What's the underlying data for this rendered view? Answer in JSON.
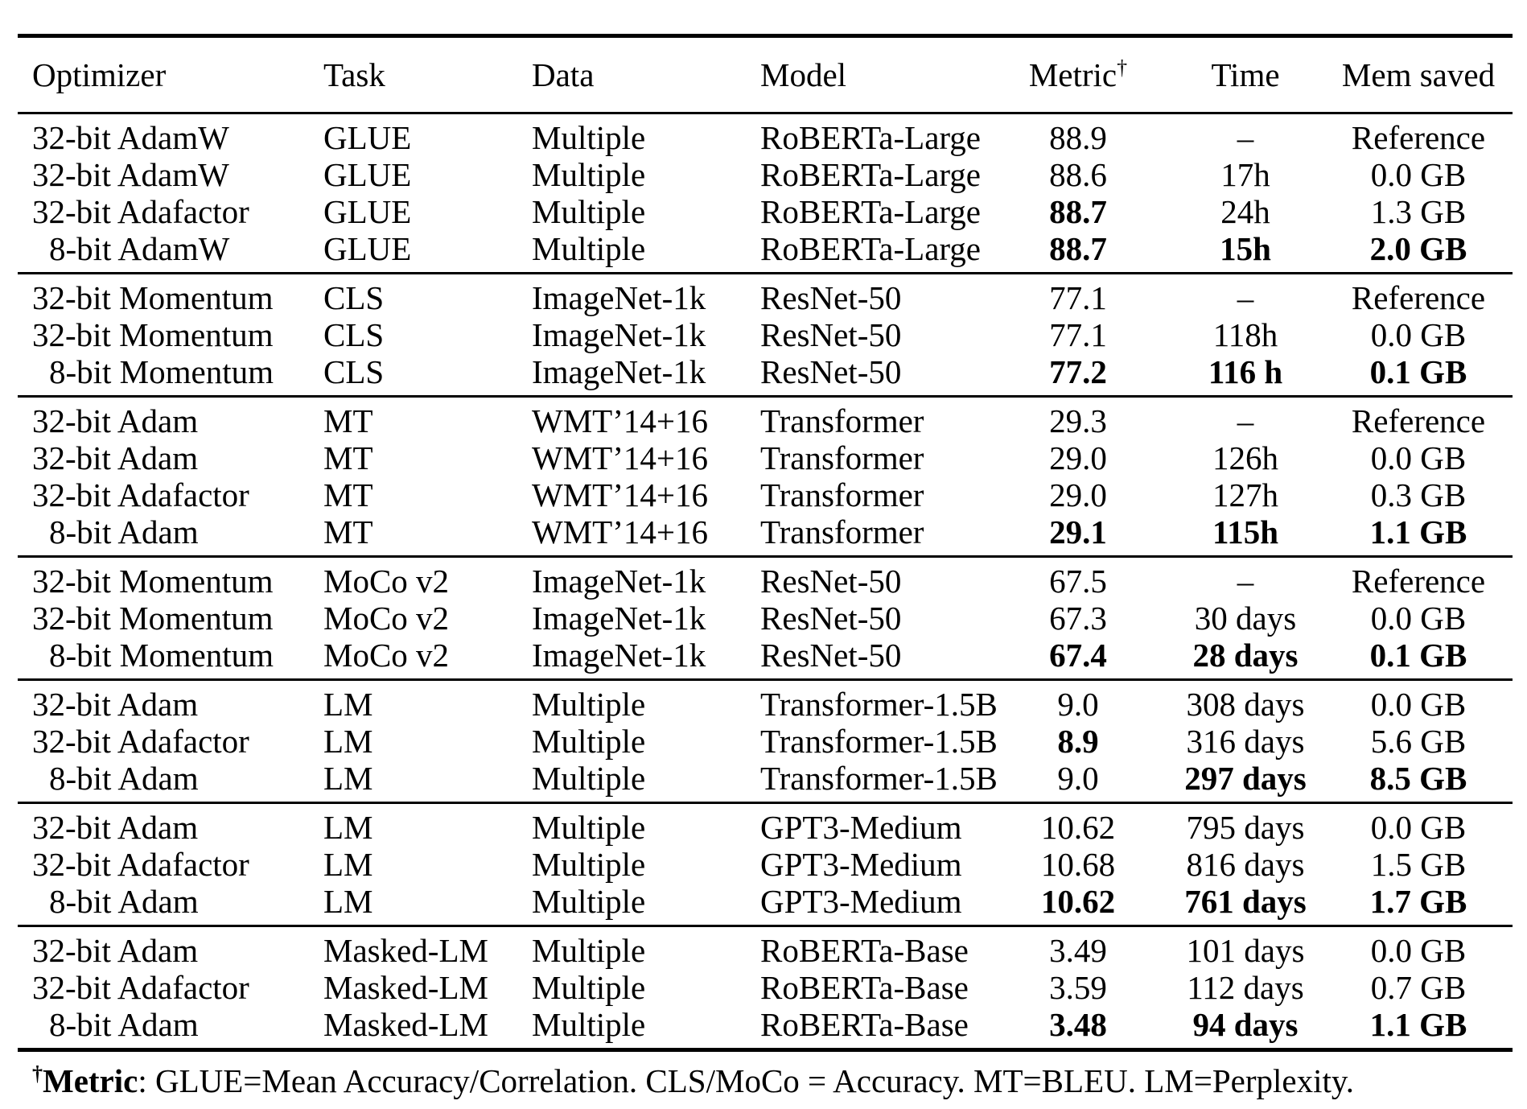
{
  "table": {
    "columns": [
      {
        "label": "Optimizer",
        "align": "left"
      },
      {
        "label": "Task",
        "align": "left"
      },
      {
        "label": "Data",
        "align": "left"
      },
      {
        "label": "Model",
        "align": "left"
      },
      {
        "label": "Metric",
        "sup": "†",
        "align": "center"
      },
      {
        "label": "Time",
        "align": "center"
      },
      {
        "label": "Mem saved",
        "align": "center"
      }
    ],
    "groups": [
      {
        "rows": [
          {
            "optimizer": "32-bit AdamW",
            "task": "GLUE",
            "data": "Multiple",
            "model": "RoBERTa-Large",
            "metric": "88.9",
            "time": "–",
            "mem": "Reference",
            "bold": []
          },
          {
            "optimizer": "32-bit AdamW",
            "task": "GLUE",
            "data": "Multiple",
            "model": "RoBERTa-Large",
            "metric": "88.6",
            "time": "17h",
            "mem": "0.0 GB",
            "bold": []
          },
          {
            "optimizer": "32-bit Adafactor",
            "task": "GLUE",
            "data": "Multiple",
            "model": "RoBERTa-Large",
            "metric": "88.7",
            "time": "24h",
            "mem": "1.3 GB",
            "bold": [
              "metric"
            ]
          },
          {
            "optimizer": "8-bit AdamW",
            "task": "GLUE",
            "data": "Multiple",
            "model": "RoBERTa-Large",
            "metric": "88.7",
            "time": "15h",
            "mem": "2.0 GB",
            "bold": [
              "metric",
              "time",
              "mem"
            ]
          }
        ]
      },
      {
        "rows": [
          {
            "optimizer": "32-bit Momentum",
            "task": "CLS",
            "data": "ImageNet-1k",
            "model": "ResNet-50",
            "metric": "77.1",
            "time": "–",
            "mem": "Reference",
            "bold": []
          },
          {
            "optimizer": "32-bit Momentum",
            "task": "CLS",
            "data": "ImageNet-1k",
            "model": "ResNet-50",
            "metric": "77.1",
            "time": "118h",
            "mem": "0.0 GB",
            "bold": []
          },
          {
            "optimizer": "8-bit Momentum",
            "task": "CLS",
            "data": "ImageNet-1k",
            "model": "ResNet-50",
            "metric": "77.2",
            "time": "116 h",
            "mem": "0.1 GB",
            "bold": [
              "metric",
              "time",
              "mem"
            ]
          }
        ]
      },
      {
        "rows": [
          {
            "optimizer": "32-bit Adam",
            "task": "MT",
            "data": "WMT’14+16",
            "model": "Transformer",
            "metric": "29.3",
            "time": "–",
            "mem": "Reference",
            "bold": []
          },
          {
            "optimizer": "32-bit Adam",
            "task": "MT",
            "data": "WMT’14+16",
            "model": "Transformer",
            "metric": "29.0",
            "time": "126h",
            "mem": "0.0 GB",
            "bold": []
          },
          {
            "optimizer": "32-bit Adafactor",
            "task": "MT",
            "data": "WMT’14+16",
            "model": "Transformer",
            "metric": "29.0",
            "time": "127h",
            "mem": "0.3 GB",
            "bold": []
          },
          {
            "optimizer": "8-bit Adam",
            "task": "MT",
            "data": "WMT’14+16",
            "model": "Transformer",
            "metric": "29.1",
            "time": "115h",
            "mem": "1.1 GB",
            "bold": [
              "metric",
              "time",
              "mem"
            ]
          }
        ]
      },
      {
        "rows": [
          {
            "optimizer": "32-bit Momentum",
            "task": "MoCo v2",
            "data": "ImageNet-1k",
            "model": "ResNet-50",
            "metric": "67.5",
            "time": "–",
            "mem": "Reference",
            "bold": []
          },
          {
            "optimizer": "32-bit Momentum",
            "task": "MoCo v2",
            "data": "ImageNet-1k",
            "model": "ResNet-50",
            "metric": "67.3",
            "time": "30 days",
            "mem": "0.0 GB",
            "bold": []
          },
          {
            "optimizer": "8-bit Momentum",
            "task": "MoCo v2",
            "data": "ImageNet-1k",
            "model": "ResNet-50",
            "metric": "67.4",
            "time": "28 days",
            "mem": "0.1 GB",
            "bold": [
              "metric",
              "time",
              "mem"
            ]
          }
        ]
      },
      {
        "rows": [
          {
            "optimizer": "32-bit Adam",
            "task": "LM",
            "data": "Multiple",
            "model": "Transformer-1.5B",
            "metric": "9.0",
            "time": "308 days",
            "mem": "0.0 GB",
            "bold": []
          },
          {
            "optimizer": "32-bit Adafactor",
            "task": "LM",
            "data": "Multiple",
            "model": "Transformer-1.5B",
            "metric": "8.9",
            "time": "316 days",
            "mem": "5.6 GB",
            "bold": [
              "metric"
            ]
          },
          {
            "optimizer": "8-bit Adam",
            "task": "LM",
            "data": "Multiple",
            "model": "Transformer-1.5B",
            "metric": "9.0",
            "time": "297 days",
            "mem": "8.5 GB",
            "bold": [
              "time",
              "mem"
            ]
          }
        ]
      },
      {
        "rows": [
          {
            "optimizer": "32-bit Adam",
            "task": "LM",
            "data": "Multiple",
            "model": "GPT3-Medium",
            "metric": "10.62",
            "time": "795 days",
            "mem": "0.0 GB",
            "bold": []
          },
          {
            "optimizer": "32-bit Adafactor",
            "task": "LM",
            "data": "Multiple",
            "model": "GPT3-Medium",
            "metric": "10.68",
            "time": "816 days",
            "mem": "1.5 GB",
            "bold": []
          },
          {
            "optimizer": "8-bit Adam",
            "task": "LM",
            "data": "Multiple",
            "model": "GPT3-Medium",
            "metric": "10.62",
            "time": "761 days",
            "mem": "1.7 GB",
            "bold": [
              "metric",
              "time",
              "mem"
            ]
          }
        ]
      },
      {
        "rows": [
          {
            "optimizer": "32-bit Adam",
            "task": "Masked-LM",
            "data": "Multiple",
            "model": "RoBERTa-Base",
            "metric": "3.49",
            "time": "101 days",
            "mem": "0.0 GB",
            "bold": []
          },
          {
            "optimizer": "32-bit Adafactor",
            "task": "Masked-LM",
            "data": "Multiple",
            "model": "RoBERTa-Base",
            "metric": "3.59",
            "time": "112 days",
            "mem": "0.7 GB",
            "bold": []
          },
          {
            "optimizer": "8-bit Adam",
            "task": "Masked-LM",
            "data": "Multiple",
            "model": "RoBERTa-Base",
            "metric": "3.48",
            "time": "94 days",
            "mem": "1.1 GB",
            "bold": [
              "metric",
              "time",
              "mem"
            ]
          }
        ]
      }
    ],
    "footnote": {
      "sup": "†",
      "bold": "Metric",
      "rest": ": GLUE=Mean Accuracy/Correlation. CLS/MoCo = Accuracy. MT=BLEU. LM=Perplexity."
    }
  }
}
